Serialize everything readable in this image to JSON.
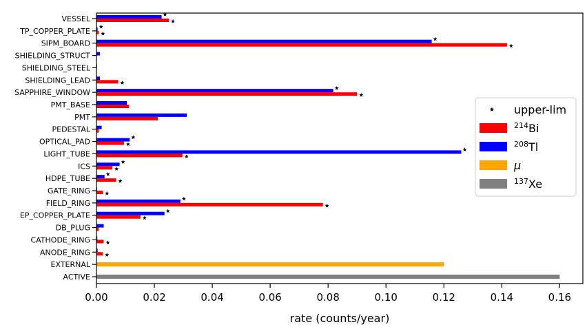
{
  "chart_data": {
    "type": "bar",
    "orientation": "horizontal",
    "xlabel": "rate (counts/year)",
    "ylabel": "",
    "xlim": [
      0,
      0.168
    ],
    "xticks": [
      "0.00",
      "0.02",
      "0.04",
      "0.06",
      "0.08",
      "0.10",
      "0.12",
      "0.14",
      "0.16"
    ],
    "categories": [
      "VESSEL",
      "TP_COPPER_PLATE",
      "SIPM_BOARD",
      "SHIELDING_STRUCT",
      "SHIELDING_STEEL",
      "SHIELDING_LEAD",
      "SAPPHIRE_WINDOW",
      "PMT_BASE",
      "PMT",
      "PEDESTAL",
      "OPTICAL_PAD",
      "LIGHT_TUBE",
      "ICS",
      "HDPE_TUBE",
      "GATE_RING",
      "FIELD_RING",
      "EP_COPPER_PLATE",
      "DB_PLUG",
      "CATHODE_RING",
      "ANODE_RING",
      "EXTERNAL",
      "ACTIVE"
    ],
    "series": [
      {
        "name": "²¹⁴Bi",
        "color": "#ff0000",
        "values": [
          0.025,
          0.0008,
          0.1418,
          0,
          0,
          0.0075,
          0.09,
          0.0112,
          0.0212,
          0.0008,
          0.0095,
          0.0297,
          0.0055,
          0.0068,
          0.0022,
          0.0782,
          0.0152,
          0.0008,
          0.0025,
          0.0022,
          0,
          0
        ],
        "upper_limit": [
          true,
          true,
          true,
          false,
          false,
          true,
          true,
          false,
          false,
          false,
          true,
          true,
          true,
          true,
          true,
          true,
          true,
          false,
          true,
          true,
          false,
          false
        ]
      },
      {
        "name": "²⁰⁸Tl",
        "color": "#0000ff",
        "values": [
          0.0225,
          0.0004,
          0.1158,
          0.0012,
          0.0002,
          0.0012,
          0.0818,
          0.0105,
          0.0312,
          0.0018,
          0.0115,
          0.126,
          0.008,
          0.0028,
          0.0002,
          0.029,
          0.0235,
          0.0025,
          0.0003,
          0.0004,
          0,
          0
        ],
        "upper_limit": [
          true,
          true,
          true,
          false,
          false,
          false,
          true,
          false,
          false,
          false,
          true,
          true,
          true,
          true,
          false,
          true,
          true,
          false,
          false,
          false,
          false,
          false
        ]
      },
      {
        "name": "μ",
        "color": "#ffa500",
        "values": [
          0,
          0,
          0,
          0,
          0,
          0,
          0,
          0,
          0,
          0,
          0,
          0,
          0,
          0,
          0,
          0,
          0,
          0,
          0,
          0,
          0.12,
          0
        ]
      },
      {
        "name": "¹³⁷Xe",
        "color": "#808080",
        "values": [
          0,
          0,
          0,
          0,
          0,
          0,
          0,
          0,
          0,
          0,
          0,
          0,
          0,
          0,
          0,
          0,
          0,
          0,
          0,
          0,
          0,
          0.16
        ]
      }
    ],
    "legend": {
      "placement": "center-right",
      "entries": [
        {
          "label": "upper-lim",
          "marker": "star",
          "color": "#000000"
        },
        {
          "base": "Bi",
          "sup": "214",
          "color": "#ff0000"
        },
        {
          "base": "Tl",
          "sup": "208",
          "color": "#0000ff"
        },
        {
          "base": "μ",
          "sup": "",
          "color": "#ffa500",
          "italic": true
        },
        {
          "base": "Xe",
          "sup": "137",
          "color": "#808080"
        }
      ]
    },
    "grid": false
  }
}
